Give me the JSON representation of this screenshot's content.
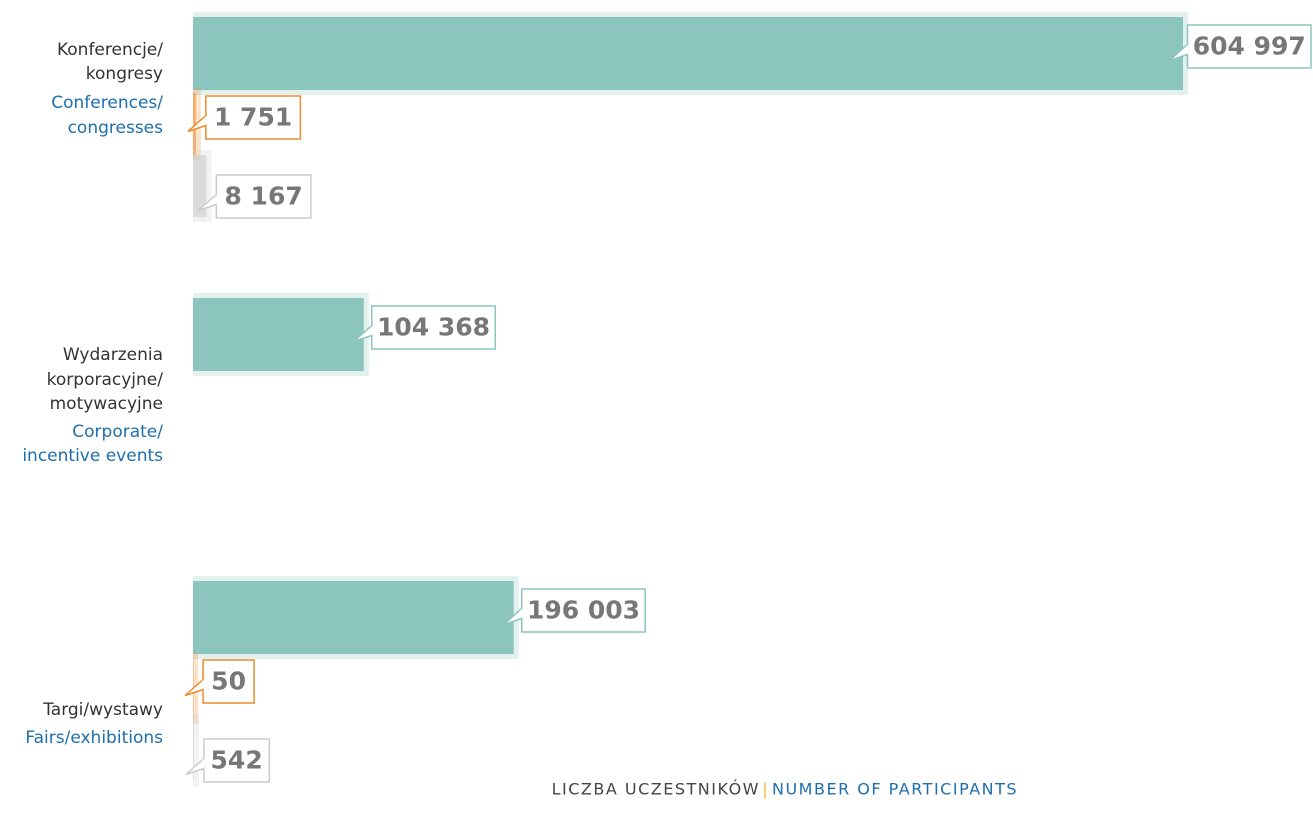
{
  "chart_data": {
    "type": "hbar",
    "categories": [
      [
        "Konferencje/",
        "kongresy"
      ],
      [
        "Wydarzenia",
        "korporacyjne/",
        "motywacyjne"
      ],
      [
        "Targi/wystawy"
      ]
    ],
    "categories_en": [
      [
        "Conferences/",
        "congresses"
      ],
      [
        "Corporate/",
        "incentive events"
      ],
      [
        "Fairs/exhibitions"
      ]
    ],
    "series": [
      {
        "color": "#8cc5bd",
        "values": [
          604997,
          104368,
          196003
        ],
        "value_labels": [
          "604 997",
          "104 368",
          "196 003"
        ]
      },
      {
        "color": "#ee8a2a",
        "values": [
          1751,
          null,
          50
        ],
        "value_labels": [
          "1 751",
          null,
          "50"
        ]
      },
      {
        "color": "#cccccc",
        "values": [
          8167,
          null,
          542
        ],
        "value_labels": [
          "8 167",
          null,
          "542"
        ]
      }
    ],
    "xlabel": "LICZBA UCZESTNIKÓW",
    "xlabel_separator": "|",
    "xlabel_en": "NUMBER OF PARTICIPANTS"
  }
}
